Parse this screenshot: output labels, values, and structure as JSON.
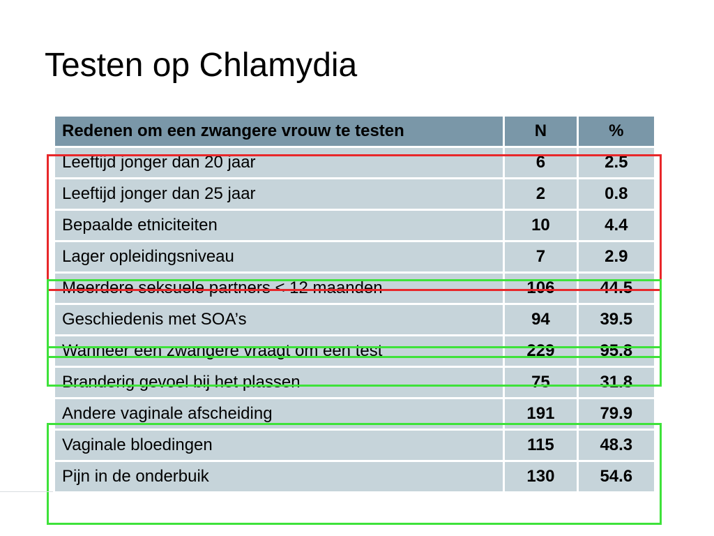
{
  "slide": {
    "title": "Testen op Chlamydia"
  },
  "table": {
    "headers": {
      "reason": "Redenen om een zwangere vrouw te testen",
      "n": "N",
      "pct": "%"
    },
    "rows": [
      {
        "reason": "Leeftijd jonger dan 20 jaar",
        "n": "6",
        "pct": "2.5"
      },
      {
        "reason": "Leeftijd jonger dan 25 jaar",
        "n": "2",
        "pct": "0.8"
      },
      {
        "reason": "Bepaalde etniciteiten",
        "n": "10",
        "pct": "4.4"
      },
      {
        "reason": "Lager opleidingsniveau",
        "n": "7",
        "pct": "2.9"
      },
      {
        "reason": "Meerdere seksuele partners < 12 maanden",
        "n": "106",
        "pct": "44.5"
      },
      {
        "reason": "Geschiedenis met SOA’s",
        "n": "94",
        "pct": "39.5"
      },
      {
        "reason": "Wanneer een zwangere vraagt om een test",
        "n": "229",
        "pct": "95.8"
      },
      {
        "reason": "Branderig gevoel bij het plassen",
        "n": "75",
        "pct": "31.8"
      },
      {
        "reason": "Andere vaginale afscheiding",
        "n": "191",
        "pct": "79.9"
      },
      {
        "reason": "Vaginale bloedingen",
        "n": "115",
        "pct": "48.3"
      },
      {
        "reason": "Pijn in de onderbuik",
        "n": "130",
        "pct": "54.6"
      }
    ]
  },
  "colors": {
    "header_bg": "#7a97a8",
    "row_bg": "#c6d4da",
    "highlight_red": "#e8272a",
    "highlight_green": "#3ee23a"
  }
}
